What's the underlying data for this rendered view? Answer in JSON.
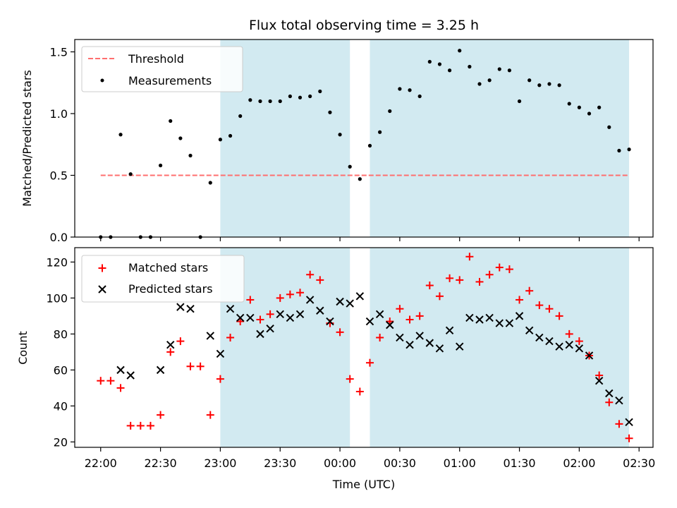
{
  "chart_data": [
    {
      "type": "scatter",
      "title": "Flux total observing time = 3.25 h",
      "xlabel": "",
      "ylabel": "Matched/Predicted stars",
      "ylim": [
        0,
        1.6
      ],
      "yticks": [
        "0.0",
        "0.5",
        "1.0",
        "1.5"
      ],
      "xlim": [
        "21:47",
        "02:37"
      ],
      "grid": false,
      "legend": "top-left",
      "shaded_regions": [
        [
          "23:00",
          "00:05"
        ],
        [
          "00:15",
          "02:25"
        ]
      ],
      "shade_color": "#add8e6",
      "threshold": {
        "name": "Threshold",
        "y": 0.5,
        "x_range": [
          "22:00",
          "02:25"
        ],
        "color": "#ff6f6f",
        "style": "dashed"
      },
      "series": [
        {
          "name": "Measurements",
          "color": "#000000",
          "marker": "dot",
          "points": [
            [
              "22:00",
              0.0
            ],
            [
              "22:05",
              0.0
            ],
            [
              "22:10",
              0.83
            ],
            [
              "22:15",
              0.51
            ],
            [
              "22:20",
              0.0
            ],
            [
              "22:25",
              0.0
            ],
            [
              "22:30",
              0.58
            ],
            [
              "22:35",
              0.94
            ],
            [
              "22:40",
              0.8
            ],
            [
              "22:45",
              0.66
            ],
            [
              "22:50",
              0.0
            ],
            [
              "22:55",
              0.44
            ],
            [
              "23:00",
              0.79
            ],
            [
              "23:05",
              0.82
            ],
            [
              "23:10",
              0.98
            ],
            [
              "23:15",
              1.11
            ],
            [
              "23:20",
              1.1
            ],
            [
              "23:25",
              1.1
            ],
            [
              "23:30",
              1.1
            ],
            [
              "23:35",
              1.14
            ],
            [
              "23:40",
              1.13
            ],
            [
              "23:45",
              1.14
            ],
            [
              "23:50",
              1.18
            ],
            [
              "23:55",
              1.01
            ],
            [
              "00:00",
              0.83
            ],
            [
              "00:05",
              0.57
            ],
            [
              "00:10",
              0.47
            ],
            [
              "00:15",
              0.74
            ],
            [
              "00:20",
              0.85
            ],
            [
              "00:25",
              1.02
            ],
            [
              "00:30",
              1.2
            ],
            [
              "00:35",
              1.19
            ],
            [
              "00:40",
              1.14
            ],
            [
              "00:45",
              1.42
            ],
            [
              "00:50",
              1.4
            ],
            [
              "00:55",
              1.35
            ],
            [
              "01:00",
              1.51
            ],
            [
              "01:05",
              1.38
            ],
            [
              "01:10",
              1.24
            ],
            [
              "01:15",
              1.27
            ],
            [
              "01:20",
              1.36
            ],
            [
              "01:25",
              1.35
            ],
            [
              "01:30",
              1.1
            ],
            [
              "01:35",
              1.27
            ],
            [
              "01:40",
              1.23
            ],
            [
              "01:45",
              1.24
            ],
            [
              "01:50",
              1.23
            ],
            [
              "01:55",
              1.08
            ],
            [
              "02:00",
              1.05
            ],
            [
              "02:05",
              1.0
            ],
            [
              "02:10",
              1.05
            ],
            [
              "02:15",
              0.89
            ],
            [
              "02:20",
              0.7
            ],
            [
              "02:25",
              0.71
            ]
          ]
        }
      ]
    },
    {
      "type": "scatter",
      "title": "",
      "xlabel": "Time (UTC)",
      "ylabel": "Count",
      "ylim": [
        17,
        128
      ],
      "yticks": [
        "20",
        "40",
        "60",
        "80",
        "100",
        "120"
      ],
      "xlim": [
        "21:47",
        "02:37"
      ],
      "xticks": [
        "22:00",
        "22:30",
        "23:00",
        "23:30",
        "00:00",
        "00:30",
        "01:00",
        "01:30",
        "02:00",
        "02:30"
      ],
      "grid": false,
      "legend": "top-left",
      "shaded_regions": [
        [
          "23:00",
          "00:05"
        ],
        [
          "00:15",
          "02:25"
        ]
      ],
      "shade_color": "#add8e6",
      "series": [
        {
          "name": "Matched stars",
          "color": "#ff0000",
          "marker": "plus",
          "points": [
            [
              "22:00",
              54
            ],
            [
              "22:05",
              54
            ],
            [
              "22:10",
              50
            ],
            [
              "22:15",
              29
            ],
            [
              "22:20",
              29
            ],
            [
              "22:25",
              29
            ],
            [
              "22:30",
              35
            ],
            [
              "22:35",
              70
            ],
            [
              "22:40",
              76
            ],
            [
              "22:45",
              62
            ],
            [
              "22:50",
              62
            ],
            [
              "22:55",
              35
            ],
            [
              "23:00",
              55
            ],
            [
              "23:05",
              78
            ],
            [
              "23:10",
              87
            ],
            [
              "23:15",
              99
            ],
            [
              "23:20",
              88
            ],
            [
              "23:25",
              91
            ],
            [
              "23:30",
              100
            ],
            [
              "23:35",
              102
            ],
            [
              "23:40",
              103
            ],
            [
              "23:45",
              113
            ],
            [
              "23:50",
              110
            ],
            [
              "23:55",
              86
            ],
            [
              "00:00",
              81
            ],
            [
              "00:05",
              55
            ],
            [
              "00:10",
              48
            ],
            [
              "00:15",
              64
            ],
            [
              "00:20",
              78
            ],
            [
              "00:25",
              87
            ],
            [
              "00:30",
              94
            ],
            [
              "00:35",
              88
            ],
            [
              "00:40",
              90
            ],
            [
              "00:45",
              107
            ],
            [
              "00:50",
              101
            ],
            [
              "00:55",
              111
            ],
            [
              "01:00",
              110
            ],
            [
              "01:05",
              123
            ],
            [
              "01:10",
              109
            ],
            [
              "01:15",
              113
            ],
            [
              "01:20",
              117
            ],
            [
              "01:25",
              116
            ],
            [
              "01:30",
              99
            ],
            [
              "01:35",
              104
            ],
            [
              "01:40",
              96
            ],
            [
              "01:45",
              94
            ],
            [
              "01:50",
              90
            ],
            [
              "01:55",
              80
            ],
            [
              "02:00",
              76
            ],
            [
              "02:05",
              68
            ],
            [
              "02:10",
              57
            ],
            [
              "02:15",
              42
            ],
            [
              "02:20",
              30
            ],
            [
              "02:25",
              22
            ]
          ]
        },
        {
          "name": "Predicted stars",
          "color": "#000000",
          "marker": "x",
          "points": [
            [
              "22:10",
              60
            ],
            [
              "22:15",
              57
            ],
            [
              "22:30",
              60
            ],
            [
              "22:35",
              74
            ],
            [
              "22:40",
              95
            ],
            [
              "22:45",
              94
            ],
            [
              "22:55",
              79
            ],
            [
              "23:00",
              69
            ],
            [
              "23:05",
              94
            ],
            [
              "23:10",
              89
            ],
            [
              "23:15",
              89
            ],
            [
              "23:20",
              80
            ],
            [
              "23:25",
              83
            ],
            [
              "23:30",
              91
            ],
            [
              "23:35",
              89
            ],
            [
              "23:40",
              91
            ],
            [
              "23:45",
              99
            ],
            [
              "23:50",
              93
            ],
            [
              "23:55",
              87
            ],
            [
              "00:00",
              98
            ],
            [
              "00:05",
              97
            ],
            [
              "00:10",
              101
            ],
            [
              "00:15",
              87
            ],
            [
              "00:20",
              91
            ],
            [
              "00:25",
              85
            ],
            [
              "00:30",
              78
            ],
            [
              "00:35",
              74
            ],
            [
              "00:40",
              79
            ],
            [
              "00:45",
              75
            ],
            [
              "00:50",
              72
            ],
            [
              "00:55",
              82
            ],
            [
              "01:00",
              73
            ],
            [
              "01:05",
              89
            ],
            [
              "01:10",
              88
            ],
            [
              "01:15",
              89
            ],
            [
              "01:20",
              86
            ],
            [
              "01:25",
              86
            ],
            [
              "01:30",
              90
            ],
            [
              "01:35",
              82
            ],
            [
              "01:40",
              78
            ],
            [
              "01:45",
              76
            ],
            [
              "01:50",
              73
            ],
            [
              "01:55",
              74
            ],
            [
              "02:00",
              72
            ],
            [
              "02:05",
              68
            ],
            [
              "02:10",
              54
            ],
            [
              "02:15",
              47
            ],
            [
              "02:20",
              43
            ],
            [
              "02:25",
              31
            ]
          ]
        }
      ]
    }
  ]
}
